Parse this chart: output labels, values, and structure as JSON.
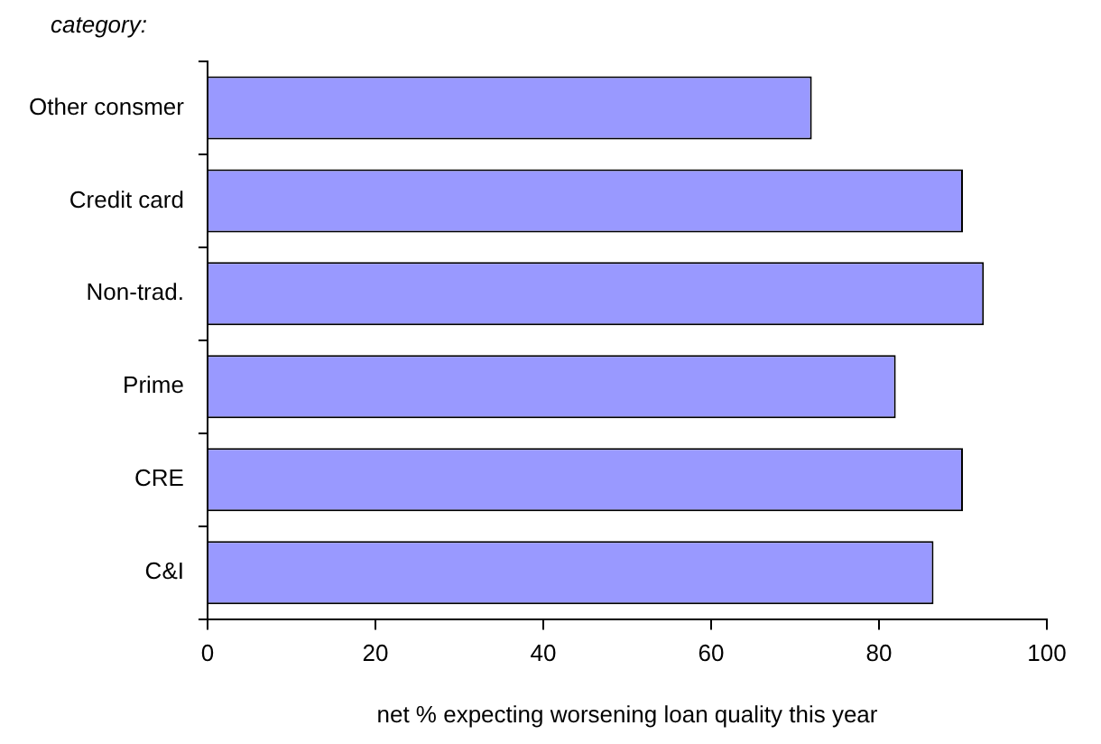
{
  "chart_data": {
    "type": "bar",
    "orientation": "horizontal",
    "ylabel": "category:",
    "xlabel": "net % expecting worsening loan quality this year",
    "categories": [
      "Other consmer",
      "Credit card",
      "Non-trad.",
      "Prime",
      "CRE",
      "C&I"
    ],
    "values": [
      72,
      90,
      92.5,
      82,
      90,
      86.5
    ],
    "color": "#9999ff",
    "xlim": [
      0,
      100
    ],
    "xticks": [
      0,
      20,
      40,
      60,
      80,
      100
    ],
    "grid": false,
    "legend": false
  }
}
